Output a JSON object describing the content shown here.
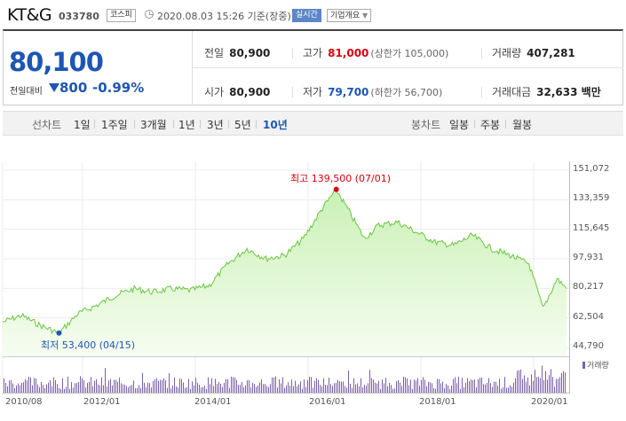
{
  "header": {
    "name": "KT&G",
    "code": "033780",
    "market": "코스피",
    "date": "2020.08.03 15:26 기준(장중)",
    "realtime": "실시간",
    "company_menu": "기업개요"
  },
  "quote": {
    "price": "80,100",
    "change_label": "전일대비",
    "change": "800",
    "rate": "-0.99%",
    "prev_close": {
      "label": "전일",
      "value": "80,900"
    },
    "high": {
      "label": "고가",
      "value": "81,000",
      "sub": "(상한가 105,000)"
    },
    "volume": {
      "label": "거래량",
      "value": "407,281"
    },
    "open": {
      "label": "시가",
      "value": "80,900"
    },
    "low": {
      "label": "저가",
      "value": "79,700",
      "sub": "(하한가 56,700)"
    },
    "amount": {
      "label": "거래대금",
      "value": "32,633 백만"
    }
  },
  "tabs": {
    "line_header": "선차트",
    "line": [
      "1일",
      "1주일",
      "3개월",
      "1년",
      "3년",
      "5년",
      "10년"
    ],
    "candle_header": "봉차트",
    "candle": [
      "일봉",
      "주봉",
      "월봉"
    ]
  },
  "chart_data": {
    "type": "area",
    "y_ticks": [
      "151,072",
      "133,359",
      "115,645",
      "97,931",
      "80,217",
      "62,504",
      "44,790"
    ],
    "ylim": [
      44790,
      151072
    ],
    "x_ticks": [
      "2010/08",
      "2012/01",
      "2014/01",
      "2016/01",
      "2018/01",
      "2020/01"
    ],
    "high_annotation": "최고 139,500 (07/01)",
    "low_annotation": "최저 53,400 (04/15)",
    "volume_legend": "거래량",
    "series": [
      {
        "x": [
          "2010/08",
          "2010/12",
          "2011/04",
          "2011/08",
          "2011/12",
          "2012/04",
          "2012/08",
          "2012/12",
          "2013/04",
          "2013/08",
          "2013/12",
          "2014/04",
          "2014/08",
          "2014/12",
          "2015/04",
          "2015/08",
          "2015/12",
          "2016/04",
          "2016/07",
          "2016/10",
          "2017/01",
          "2017/04",
          "2017/08",
          "2017/12",
          "2018/04",
          "2018/08",
          "2018/12",
          "2019/04",
          "2019/08",
          "2019/12",
          "2020/03",
          "2020/06",
          "2020/08"
        ],
        "values": [
          60000,
          64000,
          58000,
          53400,
          65000,
          70000,
          76000,
          80000,
          78000,
          80000,
          79000,
          82000,
          95000,
          104000,
          98000,
          100000,
          110000,
          128000,
          139500,
          125000,
          110000,
          118000,
          120000,
          114000,
          108000,
          106000,
          112000,
          104000,
          100000,
          95000,
          68000,
          86000,
          80100
        ]
      }
    ],
    "colors": {
      "line": "#6ac640",
      "fill_top": "#c9f0b4",
      "fill_bottom": "#f6fdf1",
      "volume": "#7b5fa9",
      "high": "#d6000f",
      "low": "#1d56b3"
    }
  }
}
